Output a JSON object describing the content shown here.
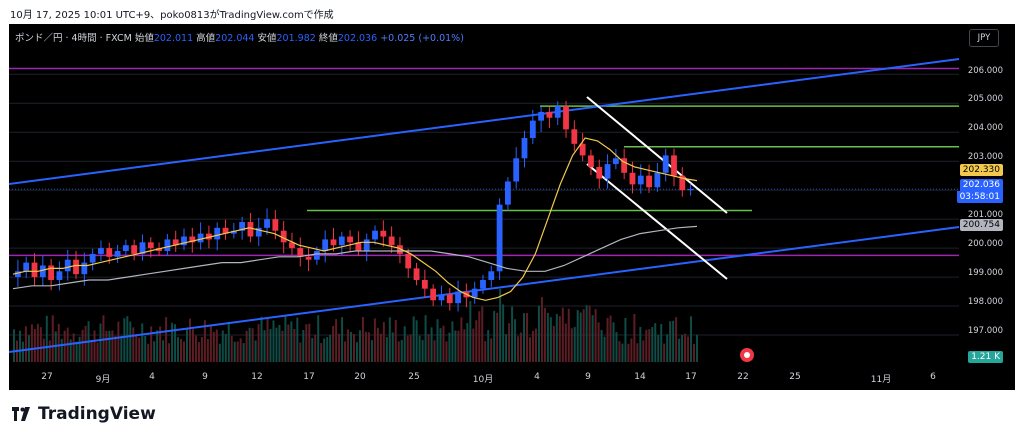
{
  "header": "10月 17, 2025 10:01 UTC+9、poko0813がTradingView.comで作成",
  "symbol": {
    "name": "ポンド／円 · 4時間 · FXCM",
    "open_label": "始値",
    "open": "202.011",
    "high_label": "高値",
    "high": "202.044",
    "low_label": "安値",
    "low": "201.982",
    "close_label": "終値",
    "close": "202.036",
    "change": "+0.025 (+0.01%)"
  },
  "currency_button": "JPY",
  "y_axis": [
    "206.000",
    "205.000",
    "204.000",
    "203.000",
    "201.000",
    "200.000",
    "199.000",
    "198.000",
    "197.000"
  ],
  "x_axis": [
    "27",
    "9月",
    "4",
    "9",
    "12",
    "17",
    "20",
    "25",
    "10月",
    "4",
    "9",
    "14",
    "17",
    "22",
    "25",
    "11月",
    "6"
  ],
  "price_tags": {
    "level_yellow": "202.330",
    "last_price": "202.036",
    "countdown": "03:58:01",
    "ma200": "200.754",
    "volume": "1.21 K"
  },
  "colors": {
    "bull": "#2962ff",
    "bear": "#f23645",
    "channel": "#2962ff",
    "support": "#6abf4b",
    "magenta": "#9c27b0",
    "ma_fast": "#f2c94c",
    "ma_slow": "#b2b5be"
  },
  "chart_data": {
    "type": "candlestick",
    "y_range": [
      196.0,
      206.7
    ],
    "horizontal_lines": [
      {
        "kind": "magenta",
        "price": 206.2
      },
      {
        "kind": "magenta",
        "price": 199.75
      },
      {
        "kind": "green",
        "price": 204.9
      },
      {
        "kind": "green",
        "price": 203.5
      },
      {
        "kind": "green",
        "price": 201.3
      }
    ],
    "close_path": [
      199.2,
      199.5,
      199.0,
      199.4,
      198.9,
      199.2,
      199.6,
      199.1,
      199.5,
      199.8,
      200.0,
      199.7,
      199.9,
      200.1,
      199.8,
      200.2,
      200.0,
      199.9,
      200.3,
      200.1,
      200.4,
      200.2,
      200.5,
      200.3,
      200.7,
      200.5,
      200.6,
      200.9,
      200.4,
      200.7,
      201.0,
      200.6,
      200.2,
      200.0,
      199.7,
      199.6,
      199.9,
      200.3,
      200.1,
      200.4,
      200.2,
      199.9,
      200.3,
      200.6,
      200.4,
      200.1,
      199.8,
      199.3,
      198.9,
      198.6,
      198.2,
      198.4,
      198.1,
      198.5,
      198.3,
      198.6,
      198.9,
      199.2,
      201.5,
      202.3,
      203.1,
      203.8,
      204.4,
      204.7,
      204.5,
      204.9,
      204.1,
      203.6,
      203.2,
      202.8,
      202.4,
      202.9,
      203.1,
      202.6,
      202.2,
      202.5,
      202.1,
      202.6,
      203.2,
      202.5,
      202.0,
      202.04
    ],
    "ma_fast_path": [
      199.1,
      199.2,
      199.2,
      199.3,
      199.3,
      199.4,
      199.4,
      199.5,
      199.6,
      199.7,
      199.8,
      199.9,
      200.0,
      200.1,
      200.2,
      200.3,
      200.4,
      200.5,
      200.6,
      200.7,
      200.6,
      200.5,
      200.3,
      200.1,
      200.0,
      199.9,
      200.0,
      200.1,
      200.2,
      200.2,
      200.1,
      200.0,
      199.8,
      199.5,
      199.2,
      198.8,
      198.5,
      198.3,
      198.2,
      198.3,
      198.5,
      199.0,
      199.8,
      201.0,
      202.2,
      203.2,
      203.8,
      203.7,
      203.4,
      203.0,
      202.8,
      202.7,
      202.6,
      202.5,
      202.4,
      202.33
    ],
    "ma_slow_path": [
      198.6,
      198.7,
      198.7,
      198.8,
      198.9,
      198.9,
      199.0,
      199.1,
      199.2,
      199.3,
      199.4,
      199.5,
      199.5,
      199.6,
      199.7,
      199.7,
      199.8,
      199.8,
      199.9,
      199.9,
      199.9,
      199.9,
      199.9,
      199.8,
      199.7,
      199.5,
      199.3,
      199.2,
      199.2,
      199.4,
      199.7,
      200.0,
      200.3,
      200.5,
      200.6,
      200.7,
      200.75
    ]
  }
}
